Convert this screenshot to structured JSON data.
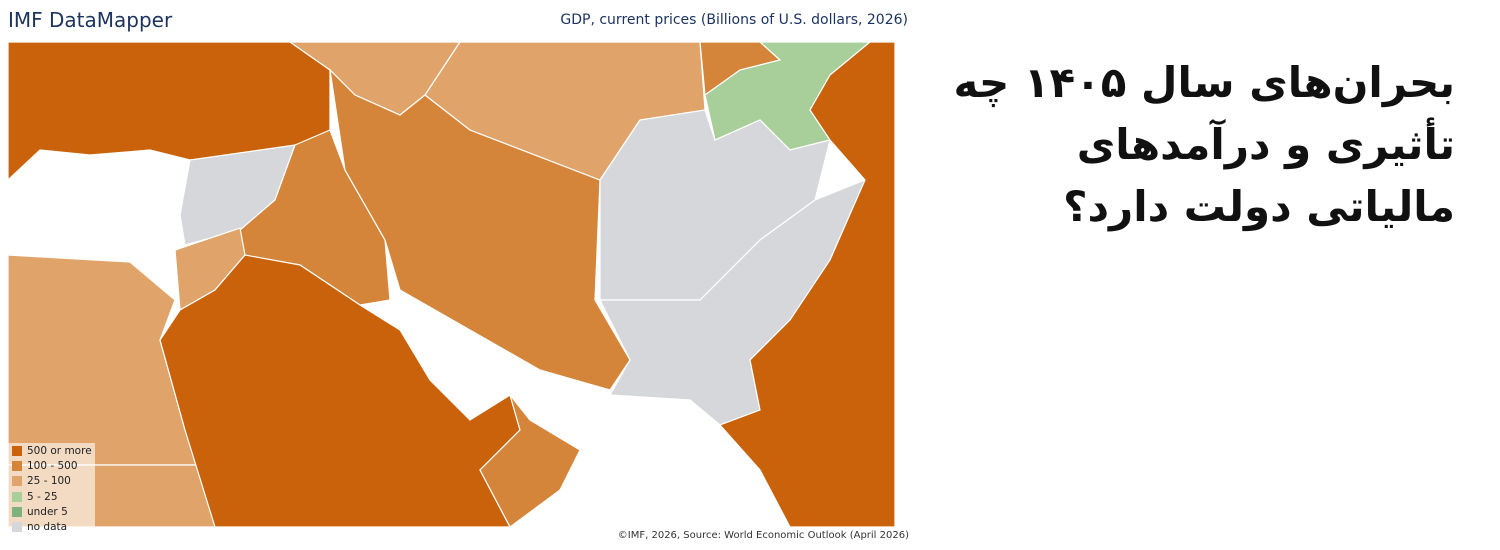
{
  "header": {
    "brand": "IMF DataMapper",
    "indicator": "GDP, current prices (Billions of U.S. dollars, 2026)"
  },
  "legend": [
    {
      "label": "500 or more",
      "color": "#c9620a"
    },
    {
      "label": "100 - 500",
      "color": "#d4853a"
    },
    {
      "label": "25 - 100",
      "color": "#e0a46a"
    },
    {
      "label": "5 - 25",
      "color": "#a8cf9a"
    },
    {
      "label": "under 5",
      "color": "#7fb27a"
    },
    {
      "label": "no data",
      "color": "#d6d7db"
    }
  ],
  "footer": {
    "source": "©IMF, 2026, Source: World Economic Outlook (April 2026)"
  },
  "headline": [
    "بحران‌های سال ۱۴۰۵ چه",
    "تأثیری و درآمدهای",
    "مالیاتی دولت دارد؟"
  ]
}
